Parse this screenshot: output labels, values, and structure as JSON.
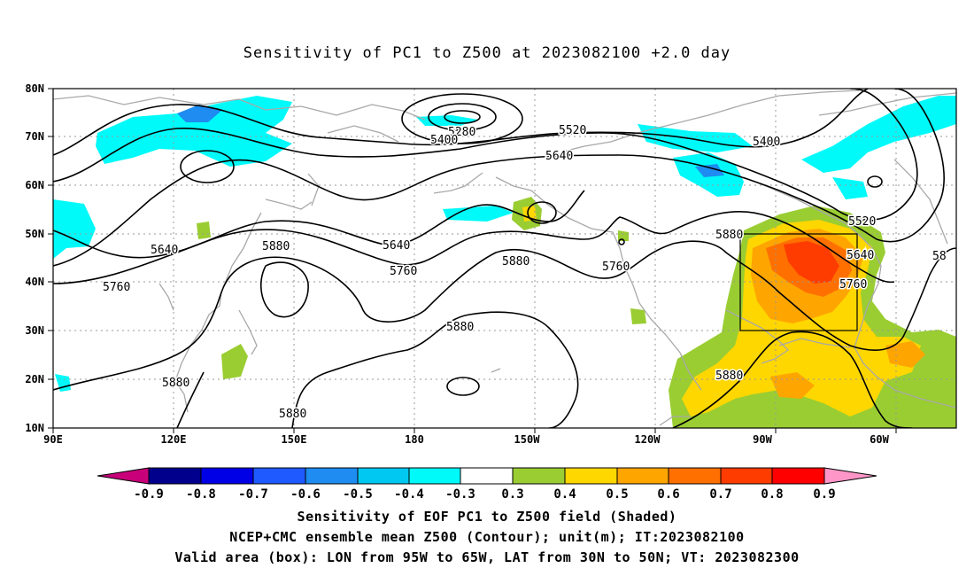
{
  "title": "Sensitivity of PC1 to Z500 at 2023082100 +2.0 day",
  "lat_labels": [
    "80N",
    "70N",
    "60N",
    "50N",
    "40N",
    "30N",
    "20N",
    "10N"
  ],
  "lon_labels": [
    "90E",
    "120E",
    "150E",
    "180",
    "150W",
    "120W",
    "90W",
    "60W"
  ],
  "contour_labels": [
    "5280",
    "5400",
    "5520",
    "5400",
    "5640",
    "5520",
    "5640",
    "5640",
    "5880",
    "5880",
    "5640",
    "5760",
    "5760",
    "5880",
    "5760",
    "5760",
    "5880",
    "5880",
    "5880",
    "5880",
    "58"
  ],
  "colorbar": {
    "labels": [
      "-0.9",
      "-0.8",
      "-0.7",
      "-0.6",
      "-0.5",
      "-0.4",
      "-0.3",
      "0.3",
      "0.4",
      "0.5",
      "0.6",
      "0.7",
      "0.8",
      "0.9"
    ],
    "colors": [
      "#c8007a",
      "#00008c",
      "#0000e6",
      "#1e5aff",
      "#1e8cf0",
      "#00c8f0",
      "#00fafa",
      "#ffffff",
      "#9acd32",
      "#ffd700",
      "#ffa500",
      "#ff7000",
      "#ff3c00",
      "#ff0000",
      "#ff96c8"
    ]
  },
  "captions": [
    "Sensitivity of EOF PC1 to Z500 field (Shaded)",
    "NCEP+CMC ensemble mean Z500 (Contour); unit(m); IT:2023082100",
    "Valid area (box): LON from 95W to 65W, LAT from 30N to 50N; VT: 2023082300"
  ]
}
